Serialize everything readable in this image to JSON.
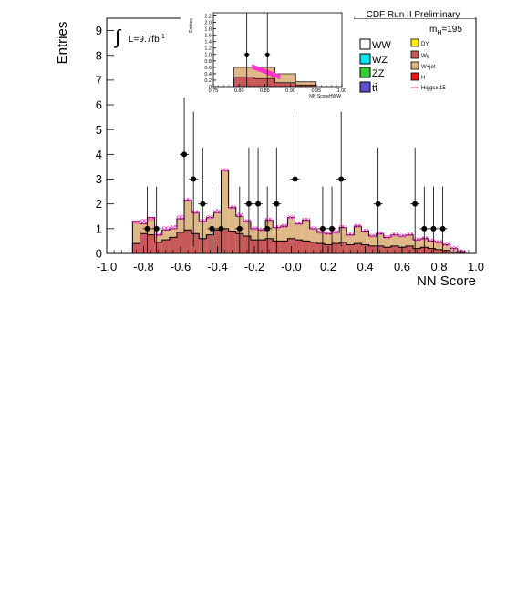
{
  "chart_data": [
    {
      "type": "histogram",
      "ylabel": "Entries",
      "xlabel": "NN Score",
      "title": "CDF Run II Preliminary",
      "mass_label": "m",
      "mass_sub": "H",
      "mass_value": "=195",
      "lumi_label": "L=9.7fb",
      "lumi_exp": "-1",
      "xlim": [
        -1.0,
        1.0
      ],
      "ylim": [
        0,
        9.5
      ],
      "xticks": [
        "-1.0",
        "-0.8",
        "-0.6",
        "-0.4",
        "-0.2",
        "-0.0",
        "0.2",
        "0.4",
        "0.6",
        "0.8",
        "1.0"
      ],
      "xtick_values": [
        -1.0,
        -0.8,
        -0.6,
        -0.4,
        -0.2,
        0.0,
        0.2,
        0.4,
        0.6,
        0.8,
        1.0
      ],
      "yticks": [
        "0",
        "1",
        "2",
        "3",
        "4",
        "5",
        "6",
        "7",
        "8",
        "9"
      ],
      "ytick_values": [
        0,
        1,
        2,
        3,
        4,
        5,
        6,
        7,
        8,
        9
      ],
      "bin_edges": [
        -0.86,
        -0.82,
        -0.78,
        -0.74,
        -0.7,
        -0.66,
        -0.62,
        -0.58,
        -0.54,
        -0.5,
        -0.46,
        -0.42,
        -0.38,
        -0.34,
        -0.3,
        -0.26,
        -0.22,
        -0.18,
        -0.14,
        -0.1,
        -0.06,
        -0.02,
        0.02,
        0.06,
        0.1,
        0.14,
        0.18,
        0.22,
        0.26,
        0.3,
        0.34,
        0.38,
        0.42,
        0.46,
        0.5,
        0.54,
        0.58,
        0.62,
        0.66,
        0.7,
        0.74,
        0.78,
        0.82,
        0.86,
        0.9,
        0.94
      ],
      "wjet_total": [
        1.3,
        1.2,
        1.45,
        0.75,
        0.95,
        1.0,
        1.4,
        2.15,
        1.65,
        1.3,
        1.45,
        1.65,
        3.35,
        1.85,
        1.5,
        1.3,
        1.0,
        0.95,
        1.35,
        1.05,
        1.1,
        1.45,
        1.2,
        1.35,
        1.0,
        0.85,
        0.8,
        0.85,
        1.05,
        0.75,
        1.1,
        0.9,
        0.7,
        0.8,
        0.65,
        0.75,
        0.7,
        0.75,
        0.55,
        0.6,
        0.5,
        0.45,
        0.35,
        0.2,
        0.1
      ],
      "red_total": [
        0.4,
        0.8,
        0.75,
        0.45,
        0.55,
        0.65,
        0.85,
        0.95,
        0.8,
        0.6,
        0.75,
        0.95,
        1.0,
        0.9,
        0.8,
        0.7,
        0.55,
        0.55,
        0.6,
        0.5,
        0.5,
        0.6,
        0.55,
        0.5,
        0.45,
        0.4,
        0.35,
        0.4,
        0.45,
        0.35,
        0.4,
        0.35,
        0.3,
        0.3,
        0.25,
        0.3,
        0.25,
        0.3,
        0.2,
        0.25,
        0.2,
        0.15,
        0.12,
        0.06,
        0.03
      ],
      "signal": [
        1.25,
        1.35,
        1.4,
        0.8,
        1.05,
        1.1,
        1.5,
        2.2,
        1.7,
        1.35,
        1.5,
        1.75,
        3.4,
        1.9,
        1.6,
        1.35,
        1.05,
        1.0,
        1.4,
        1.1,
        1.15,
        1.5,
        1.25,
        1.4,
        1.05,
        0.9,
        0.85,
        0.9,
        1.1,
        0.8,
        1.15,
        0.95,
        0.75,
        0.85,
        0.7,
        0.8,
        0.75,
        0.8,
        0.6,
        0.65,
        0.55,
        0.5,
        0.4,
        0.25,
        0.12
      ],
      "data_points": [
        {
          "x": -0.78,
          "y": 1
        },
        {
          "x": -0.73,
          "y": 1
        },
        {
          "x": -0.58,
          "y": 4
        },
        {
          "x": -0.53,
          "y": 3
        },
        {
          "x": -0.48,
          "y": 2
        },
        {
          "x": -0.43,
          "y": 1
        },
        {
          "x": -0.38,
          "y": 1
        },
        {
          "x": -0.28,
          "y": 1
        },
        {
          "x": -0.23,
          "y": 2
        },
        {
          "x": -0.18,
          "y": 2
        },
        {
          "x": -0.13,
          "y": 1
        },
        {
          "x": -0.08,
          "y": 2
        },
        {
          "x": 0.02,
          "y": 3
        },
        {
          "x": 0.17,
          "y": 1
        },
        {
          "x": 0.22,
          "y": 1
        },
        {
          "x": 0.27,
          "y": 3
        },
        {
          "x": 0.47,
          "y": 2
        },
        {
          "x": 0.67,
          "y": 2
        },
        {
          "x": 0.72,
          "y": 1
        },
        {
          "x": 0.77,
          "y": 1
        },
        {
          "x": 0.82,
          "y": 1
        }
      ],
      "legend": [
        {
          "label": "WW",
          "color": "#ffffff"
        },
        {
          "label": "WZ",
          "color": "#00e5ee"
        },
        {
          "label": "ZZ",
          "color": "#33cc33"
        },
        {
          "label": "tt̄",
          "color": "#5a4fcf"
        },
        {
          "label": "DY",
          "color": "#ffee00"
        },
        {
          "label": "Wγ",
          "color": "#c9585a"
        },
        {
          "label": "W+jet",
          "color": "#deb887"
        },
        {
          "label": "H",
          "color": "#ee1111"
        },
        {
          "label": "Higgsx 15",
          "color": "#ff3399",
          "line": true
        }
      ],
      "colors": {
        "wjet": "#deb887",
        "red": "#c9585a",
        "signal": "#ff33cc",
        "data": "#000000"
      }
    },
    {
      "type": "histogram_inset",
      "ylabel": "Entries",
      "xlabel": "NN ScoreHWW",
      "xlim": [
        0.75,
        1.0
      ],
      "ylim": [
        0,
        2.3
      ],
      "xticks": [
        "0.75",
        "0.80",
        "0.85",
        "0.90",
        "0.95",
        "1.00"
      ],
      "xtick_values": [
        0.75,
        0.8,
        0.85,
        0.9,
        0.95,
        1.0
      ],
      "yticks": [
        "0",
        "0.2",
        "0.4",
        "0.6",
        "0.8",
        "1.0",
        "1.2",
        "1.4",
        "1.6",
        "1.8",
        "2.0",
        "2.2"
      ],
      "ytick_values": [
        0,
        0.2,
        0.4,
        0.6,
        0.8,
        1.0,
        1.2,
        1.4,
        1.6,
        1.8,
        2.0,
        2.2
      ],
      "bin_edges": [
        0.79,
        0.83,
        0.87,
        0.91,
        0.95
      ],
      "wjet_total": [
        0.6,
        0.6,
        0.4,
        0.15
      ],
      "red_total": [
        0.3,
        0.25,
        0.12,
        0.05
      ],
      "signal_band": [
        {
          "x0": 0.825,
          "x1": 0.88,
          "y0": 0.65,
          "y1": 0.32
        }
      ],
      "data_points": [
        {
          "x": 0.815,
          "y": 1
        },
        {
          "x": 0.855,
          "y": 1
        }
      ]
    }
  ]
}
